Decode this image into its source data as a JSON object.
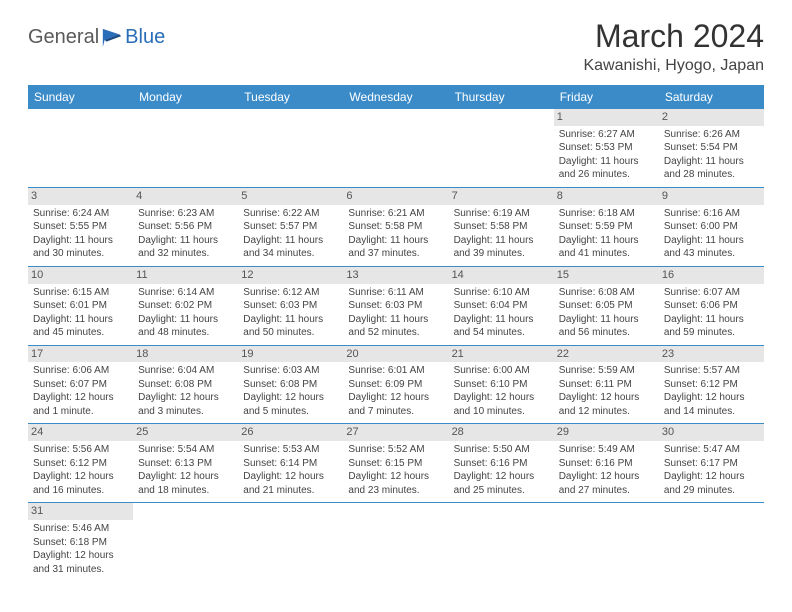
{
  "logo": {
    "part1": "General",
    "part2": "Blue"
  },
  "title": "March 2024",
  "location": "Kawanishi, Hyogo, Japan",
  "colors": {
    "header_bg": "#3b8bc9",
    "header_text": "#ffffff",
    "daynum_bg": "#e6e6e6",
    "border": "#3b8bc9",
    "logo_blue": "#2a6db8",
    "logo_gray": "#5a5a5a"
  },
  "weekdays": [
    "Sunday",
    "Monday",
    "Tuesday",
    "Wednesday",
    "Thursday",
    "Friday",
    "Saturday"
  ],
  "weeks": [
    [
      null,
      null,
      null,
      null,
      null,
      {
        "n": "1",
        "sr": "Sunrise: 6:27 AM",
        "ss": "Sunset: 5:53 PM",
        "d1": "Daylight: 11 hours",
        "d2": "and 26 minutes."
      },
      {
        "n": "2",
        "sr": "Sunrise: 6:26 AM",
        "ss": "Sunset: 5:54 PM",
        "d1": "Daylight: 11 hours",
        "d2": "and 28 minutes."
      }
    ],
    [
      {
        "n": "3",
        "sr": "Sunrise: 6:24 AM",
        "ss": "Sunset: 5:55 PM",
        "d1": "Daylight: 11 hours",
        "d2": "and 30 minutes."
      },
      {
        "n": "4",
        "sr": "Sunrise: 6:23 AM",
        "ss": "Sunset: 5:56 PM",
        "d1": "Daylight: 11 hours",
        "d2": "and 32 minutes."
      },
      {
        "n": "5",
        "sr": "Sunrise: 6:22 AM",
        "ss": "Sunset: 5:57 PM",
        "d1": "Daylight: 11 hours",
        "d2": "and 34 minutes."
      },
      {
        "n": "6",
        "sr": "Sunrise: 6:21 AM",
        "ss": "Sunset: 5:58 PM",
        "d1": "Daylight: 11 hours",
        "d2": "and 37 minutes."
      },
      {
        "n": "7",
        "sr": "Sunrise: 6:19 AM",
        "ss": "Sunset: 5:58 PM",
        "d1": "Daylight: 11 hours",
        "d2": "and 39 minutes."
      },
      {
        "n": "8",
        "sr": "Sunrise: 6:18 AM",
        "ss": "Sunset: 5:59 PM",
        "d1": "Daylight: 11 hours",
        "d2": "and 41 minutes."
      },
      {
        "n": "9",
        "sr": "Sunrise: 6:16 AM",
        "ss": "Sunset: 6:00 PM",
        "d1": "Daylight: 11 hours",
        "d2": "and 43 minutes."
      }
    ],
    [
      {
        "n": "10",
        "sr": "Sunrise: 6:15 AM",
        "ss": "Sunset: 6:01 PM",
        "d1": "Daylight: 11 hours",
        "d2": "and 45 minutes."
      },
      {
        "n": "11",
        "sr": "Sunrise: 6:14 AM",
        "ss": "Sunset: 6:02 PM",
        "d1": "Daylight: 11 hours",
        "d2": "and 48 minutes."
      },
      {
        "n": "12",
        "sr": "Sunrise: 6:12 AM",
        "ss": "Sunset: 6:03 PM",
        "d1": "Daylight: 11 hours",
        "d2": "and 50 minutes."
      },
      {
        "n": "13",
        "sr": "Sunrise: 6:11 AM",
        "ss": "Sunset: 6:03 PM",
        "d1": "Daylight: 11 hours",
        "d2": "and 52 minutes."
      },
      {
        "n": "14",
        "sr": "Sunrise: 6:10 AM",
        "ss": "Sunset: 6:04 PM",
        "d1": "Daylight: 11 hours",
        "d2": "and 54 minutes."
      },
      {
        "n": "15",
        "sr": "Sunrise: 6:08 AM",
        "ss": "Sunset: 6:05 PM",
        "d1": "Daylight: 11 hours",
        "d2": "and 56 minutes."
      },
      {
        "n": "16",
        "sr": "Sunrise: 6:07 AM",
        "ss": "Sunset: 6:06 PM",
        "d1": "Daylight: 11 hours",
        "d2": "and 59 minutes."
      }
    ],
    [
      {
        "n": "17",
        "sr": "Sunrise: 6:06 AM",
        "ss": "Sunset: 6:07 PM",
        "d1": "Daylight: 12 hours",
        "d2": "and 1 minute."
      },
      {
        "n": "18",
        "sr": "Sunrise: 6:04 AM",
        "ss": "Sunset: 6:08 PM",
        "d1": "Daylight: 12 hours",
        "d2": "and 3 minutes."
      },
      {
        "n": "19",
        "sr": "Sunrise: 6:03 AM",
        "ss": "Sunset: 6:08 PM",
        "d1": "Daylight: 12 hours",
        "d2": "and 5 minutes."
      },
      {
        "n": "20",
        "sr": "Sunrise: 6:01 AM",
        "ss": "Sunset: 6:09 PM",
        "d1": "Daylight: 12 hours",
        "d2": "and 7 minutes."
      },
      {
        "n": "21",
        "sr": "Sunrise: 6:00 AM",
        "ss": "Sunset: 6:10 PM",
        "d1": "Daylight: 12 hours",
        "d2": "and 10 minutes."
      },
      {
        "n": "22",
        "sr": "Sunrise: 5:59 AM",
        "ss": "Sunset: 6:11 PM",
        "d1": "Daylight: 12 hours",
        "d2": "and 12 minutes."
      },
      {
        "n": "23",
        "sr": "Sunrise: 5:57 AM",
        "ss": "Sunset: 6:12 PM",
        "d1": "Daylight: 12 hours",
        "d2": "and 14 minutes."
      }
    ],
    [
      {
        "n": "24",
        "sr": "Sunrise: 5:56 AM",
        "ss": "Sunset: 6:12 PM",
        "d1": "Daylight: 12 hours",
        "d2": "and 16 minutes."
      },
      {
        "n": "25",
        "sr": "Sunrise: 5:54 AM",
        "ss": "Sunset: 6:13 PM",
        "d1": "Daylight: 12 hours",
        "d2": "and 18 minutes."
      },
      {
        "n": "26",
        "sr": "Sunrise: 5:53 AM",
        "ss": "Sunset: 6:14 PM",
        "d1": "Daylight: 12 hours",
        "d2": "and 21 minutes."
      },
      {
        "n": "27",
        "sr": "Sunrise: 5:52 AM",
        "ss": "Sunset: 6:15 PM",
        "d1": "Daylight: 12 hours",
        "d2": "and 23 minutes."
      },
      {
        "n": "28",
        "sr": "Sunrise: 5:50 AM",
        "ss": "Sunset: 6:16 PM",
        "d1": "Daylight: 12 hours",
        "d2": "and 25 minutes."
      },
      {
        "n": "29",
        "sr": "Sunrise: 5:49 AM",
        "ss": "Sunset: 6:16 PM",
        "d1": "Daylight: 12 hours",
        "d2": "and 27 minutes."
      },
      {
        "n": "30",
        "sr": "Sunrise: 5:47 AM",
        "ss": "Sunset: 6:17 PM",
        "d1": "Daylight: 12 hours",
        "d2": "and 29 minutes."
      }
    ],
    [
      {
        "n": "31",
        "sr": "Sunrise: 5:46 AM",
        "ss": "Sunset: 6:18 PM",
        "d1": "Daylight: 12 hours",
        "d2": "and 31 minutes."
      },
      null,
      null,
      null,
      null,
      null,
      null
    ]
  ]
}
